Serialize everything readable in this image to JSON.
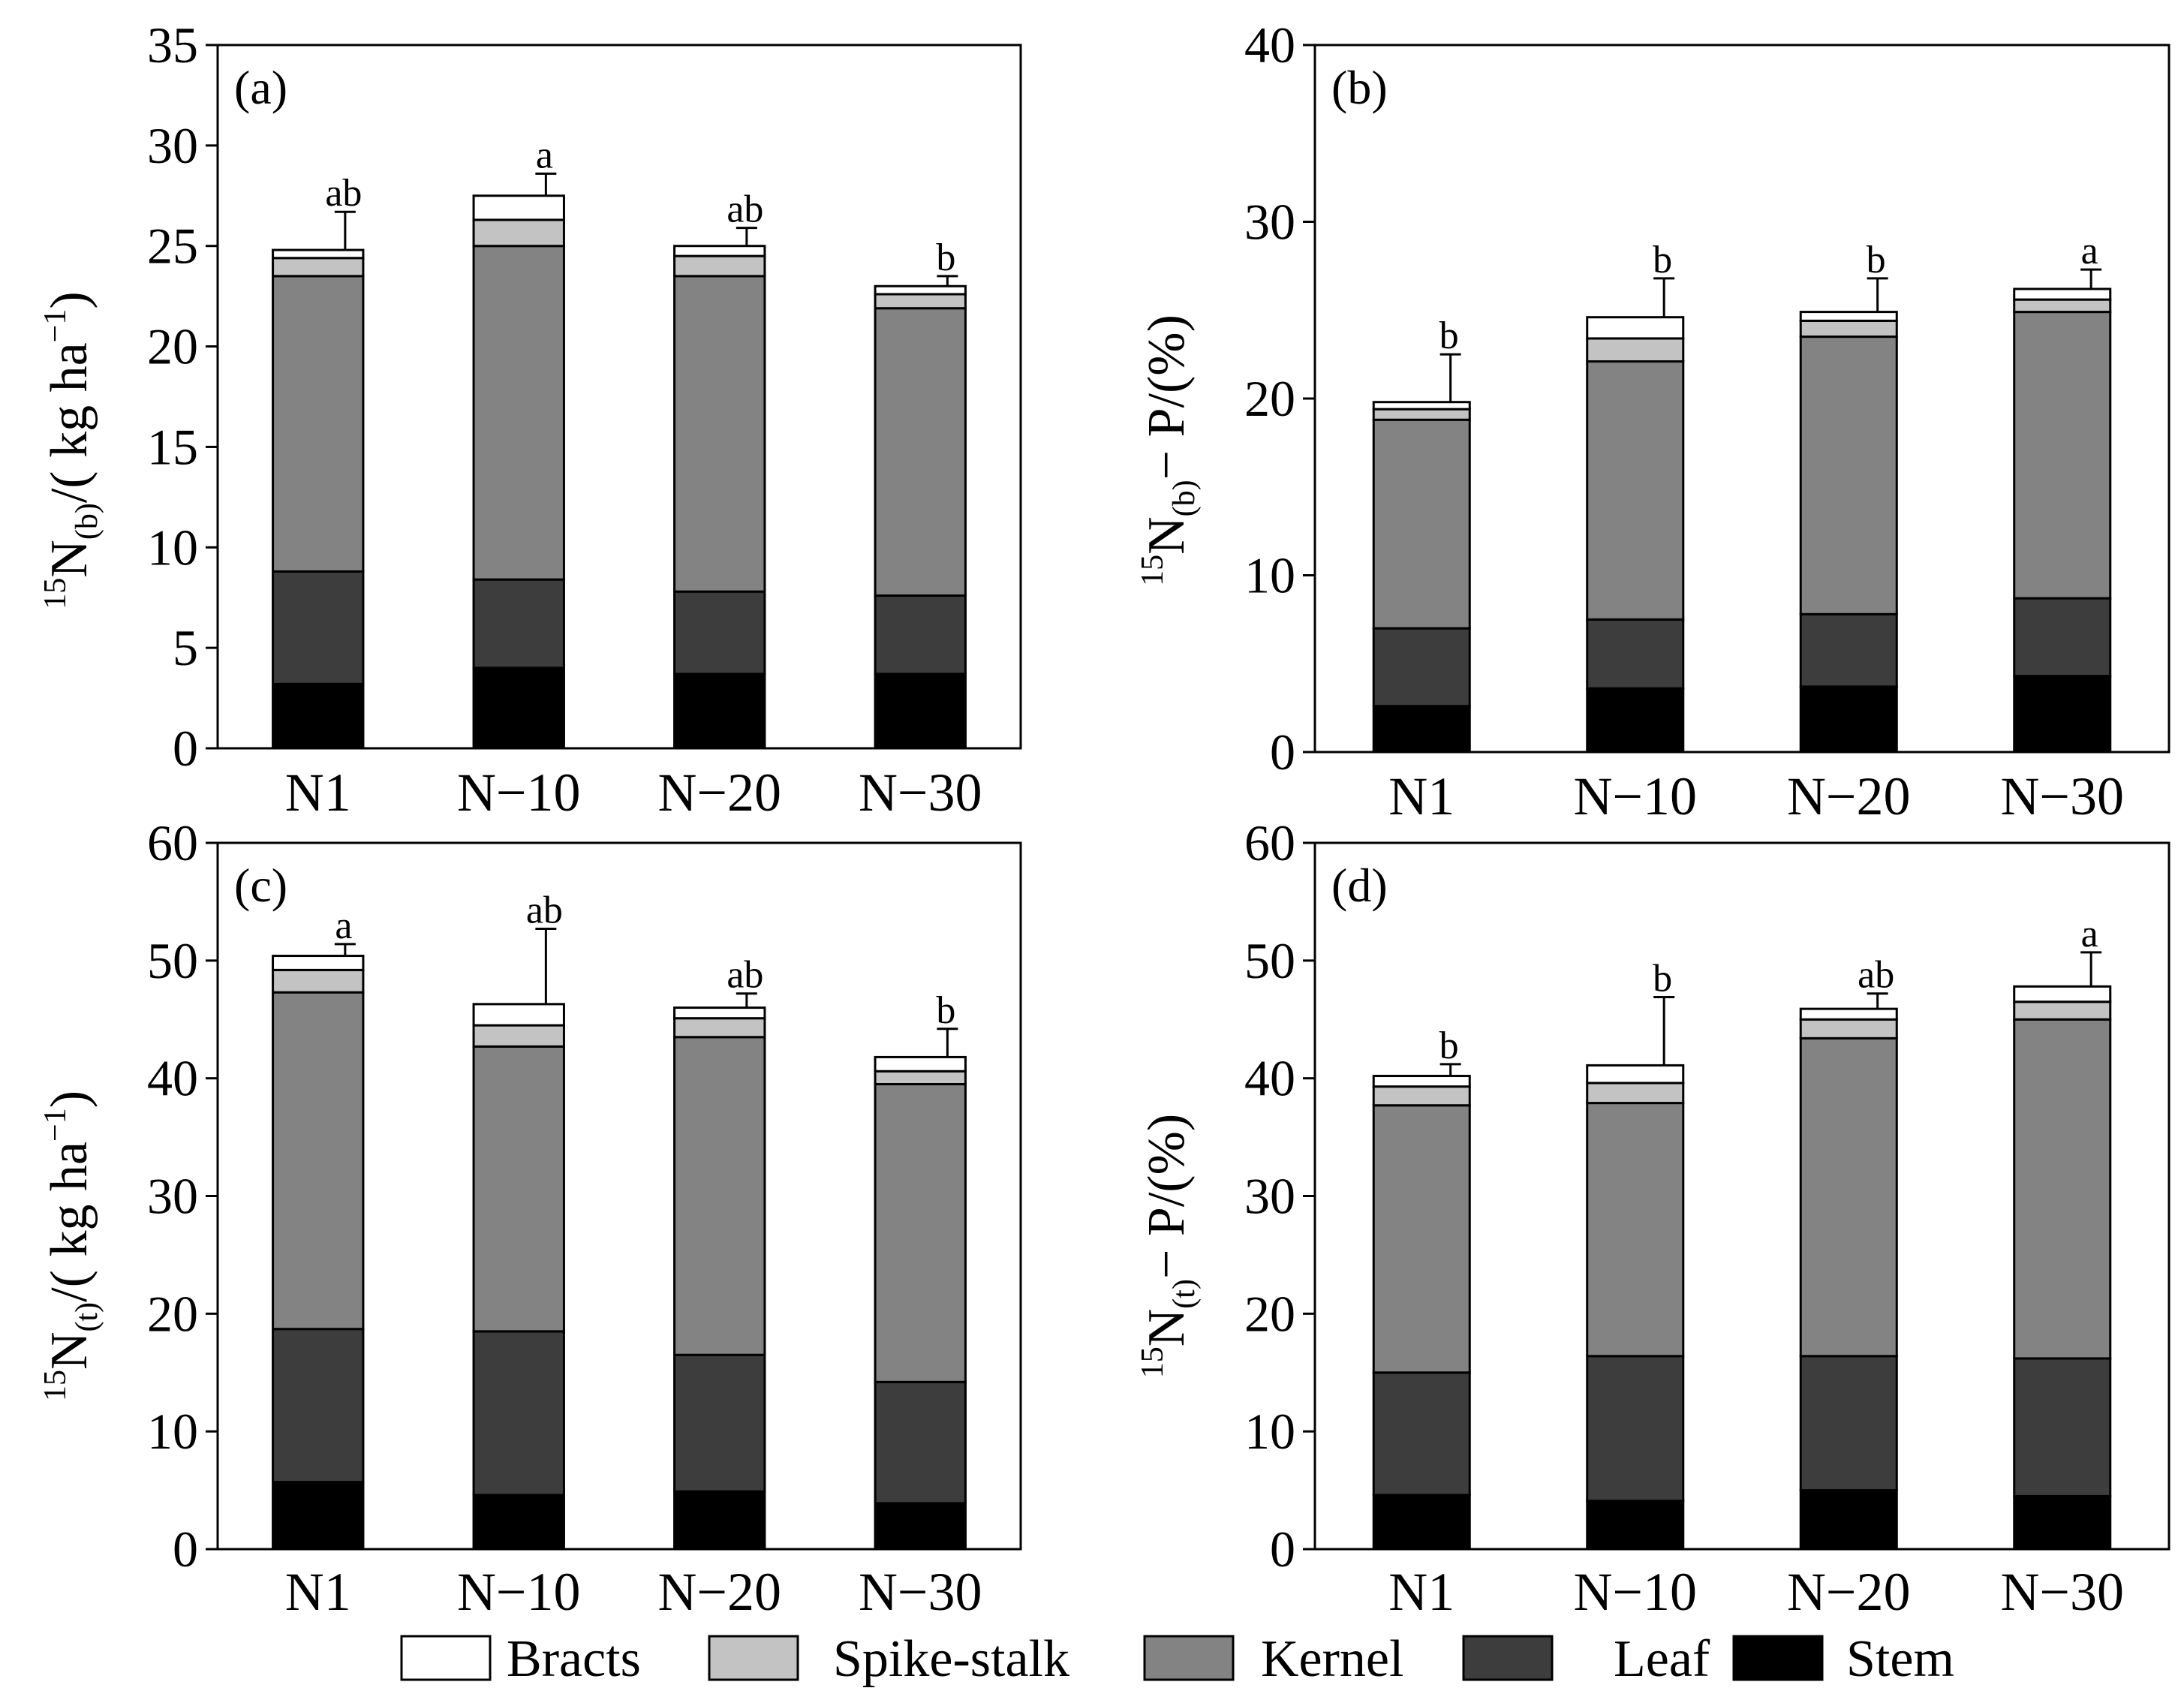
{
  "colors": {
    "Bracts": "#ffffff",
    "Spike-stalk": "#c3c3c3",
    "Kernel": "#838383",
    "Leaf": "#3d3d3d",
    "Stem": "#000000",
    "axis": "#000000"
  },
  "legend": [
    "Bracts",
    "Spike-stalk",
    "Kernel",
    "Leaf",
    "Stem"
  ],
  "chart_data": [
    {
      "type": "bar",
      "stacked": true,
      "panel_label": "(a)",
      "ylabel": {
        "sup": "15",
        "main": "N",
        "sub": "(b)",
        "rest": "/( kg ha",
        "unit_sup": "−1",
        "close": ")"
      },
      "ylim": [
        0,
        35
      ],
      "yticks": [
        "0",
        "5",
        "10",
        "15",
        "20",
        "25",
        "30",
        "35"
      ],
      "categories": [
        "N1",
        "N−10",
        "N−20",
        "N−30"
      ],
      "series": [
        {
          "name": "Stem",
          "values": [
            3.2,
            4.0,
            3.7,
            3.7
          ]
        },
        {
          "name": "Leaf",
          "values": [
            5.6,
            4.4,
            4.1,
            3.9
          ]
        },
        {
          "name": "Kernel",
          "values": [
            14.7,
            16.6,
            15.7,
            14.3
          ]
        },
        {
          "name": "Spike-stalk",
          "values": [
            0.9,
            1.3,
            1.0,
            0.7
          ]
        },
        {
          "name": "Bracts",
          "values": [
            0.4,
            1.2,
            0.5,
            0.4
          ]
        }
      ],
      "error": [
        1.9,
        1.1,
        0.9,
        0.5
      ],
      "letters": [
        "ab",
        "a",
        "ab",
        "b"
      ]
    },
    {
      "type": "bar",
      "stacked": true,
      "panel_label": "(b)",
      "ylabel": {
        "sup": "15",
        "main": "N",
        "sub": "(b)",
        "rest": "− P/(%)",
        "unit_sup": "",
        "close": ""
      },
      "ylim": [
        0,
        40
      ],
      "yticks": [
        "0",
        "10",
        "20",
        "30",
        "40"
      ],
      "categories": [
        "N1",
        "N−10",
        "N−20",
        "N−30"
      ],
      "series": [
        {
          "name": "Stem",
          "values": [
            2.6,
            3.6,
            3.7,
            4.3
          ]
        },
        {
          "name": "Leaf",
          "values": [
            4.4,
            3.9,
            4.1,
            4.4
          ]
        },
        {
          "name": "Kernel",
          "values": [
            11.8,
            14.6,
            15.7,
            16.2
          ]
        },
        {
          "name": "Spike-stalk",
          "values": [
            0.6,
            1.3,
            0.9,
            0.7
          ]
        },
        {
          "name": "Bracts",
          "values": [
            0.4,
            1.2,
            0.5,
            0.6
          ]
        }
      ],
      "error": [
        2.7,
        2.2,
        1.9,
        1.1
      ],
      "letters": [
        "b",
        "b",
        "b",
        "a"
      ]
    },
    {
      "type": "bar",
      "stacked": true,
      "panel_label": "(c)",
      "ylabel": {
        "sup": "15",
        "main": "N",
        "sub": "(t)",
        "rest": "/( kg ha",
        "unit_sup": "−1",
        "close": ")"
      },
      "ylim": [
        0,
        60
      ],
      "yticks": [
        "0",
        "10",
        "20",
        "30",
        "40",
        "50",
        "60"
      ],
      "categories": [
        "N1",
        "N−10",
        "N−20",
        "N−30"
      ],
      "series": [
        {
          "name": "Stem",
          "values": [
            5.7,
            4.6,
            4.9,
            3.9
          ]
        },
        {
          "name": "Leaf",
          "values": [
            13.0,
            13.9,
            11.6,
            10.3
          ]
        },
        {
          "name": "Kernel",
          "values": [
            28.6,
            24.2,
            27.0,
            25.3
          ]
        },
        {
          "name": "Spike-stalk",
          "values": [
            1.9,
            1.8,
            1.6,
            1.1
          ]
        },
        {
          "name": "Bracts",
          "values": [
            1.2,
            1.8,
            0.9,
            1.2
          ]
        }
      ],
      "error": [
        1.0,
        6.4,
        1.2,
        2.4
      ],
      "letters": [
        "a",
        "ab",
        "ab",
        "b"
      ]
    },
    {
      "type": "bar",
      "stacked": true,
      "panel_label": "(d)",
      "ylabel": {
        "sup": "15",
        "main": "N",
        "sub": "(t)",
        "rest": "− P/(%)",
        "unit_sup": "",
        "close": ""
      },
      "ylim": [
        0,
        60
      ],
      "yticks": [
        "0",
        "10",
        "20",
        "30",
        "40",
        "50",
        "60"
      ],
      "categories": [
        "N1",
        "N−10",
        "N−20",
        "N−30"
      ],
      "series": [
        {
          "name": "Stem",
          "values": [
            4.6,
            4.1,
            5.0,
            4.5
          ]
        },
        {
          "name": "Leaf",
          "values": [
            10.4,
            12.3,
            11.4,
            11.7
          ]
        },
        {
          "name": "Kernel",
          "values": [
            22.7,
            21.5,
            27.0,
            28.8
          ]
        },
        {
          "name": "Spike-stalk",
          "values": [
            1.6,
            1.7,
            1.6,
            1.5
          ]
        },
        {
          "name": "Bracts",
          "values": [
            0.9,
            1.5,
            0.9,
            1.3
          ]
        }
      ],
      "error": [
        1.0,
        5.8,
        1.3,
        2.9
      ],
      "letters": [
        "b",
        "b",
        "ab",
        "a"
      ]
    }
  ]
}
